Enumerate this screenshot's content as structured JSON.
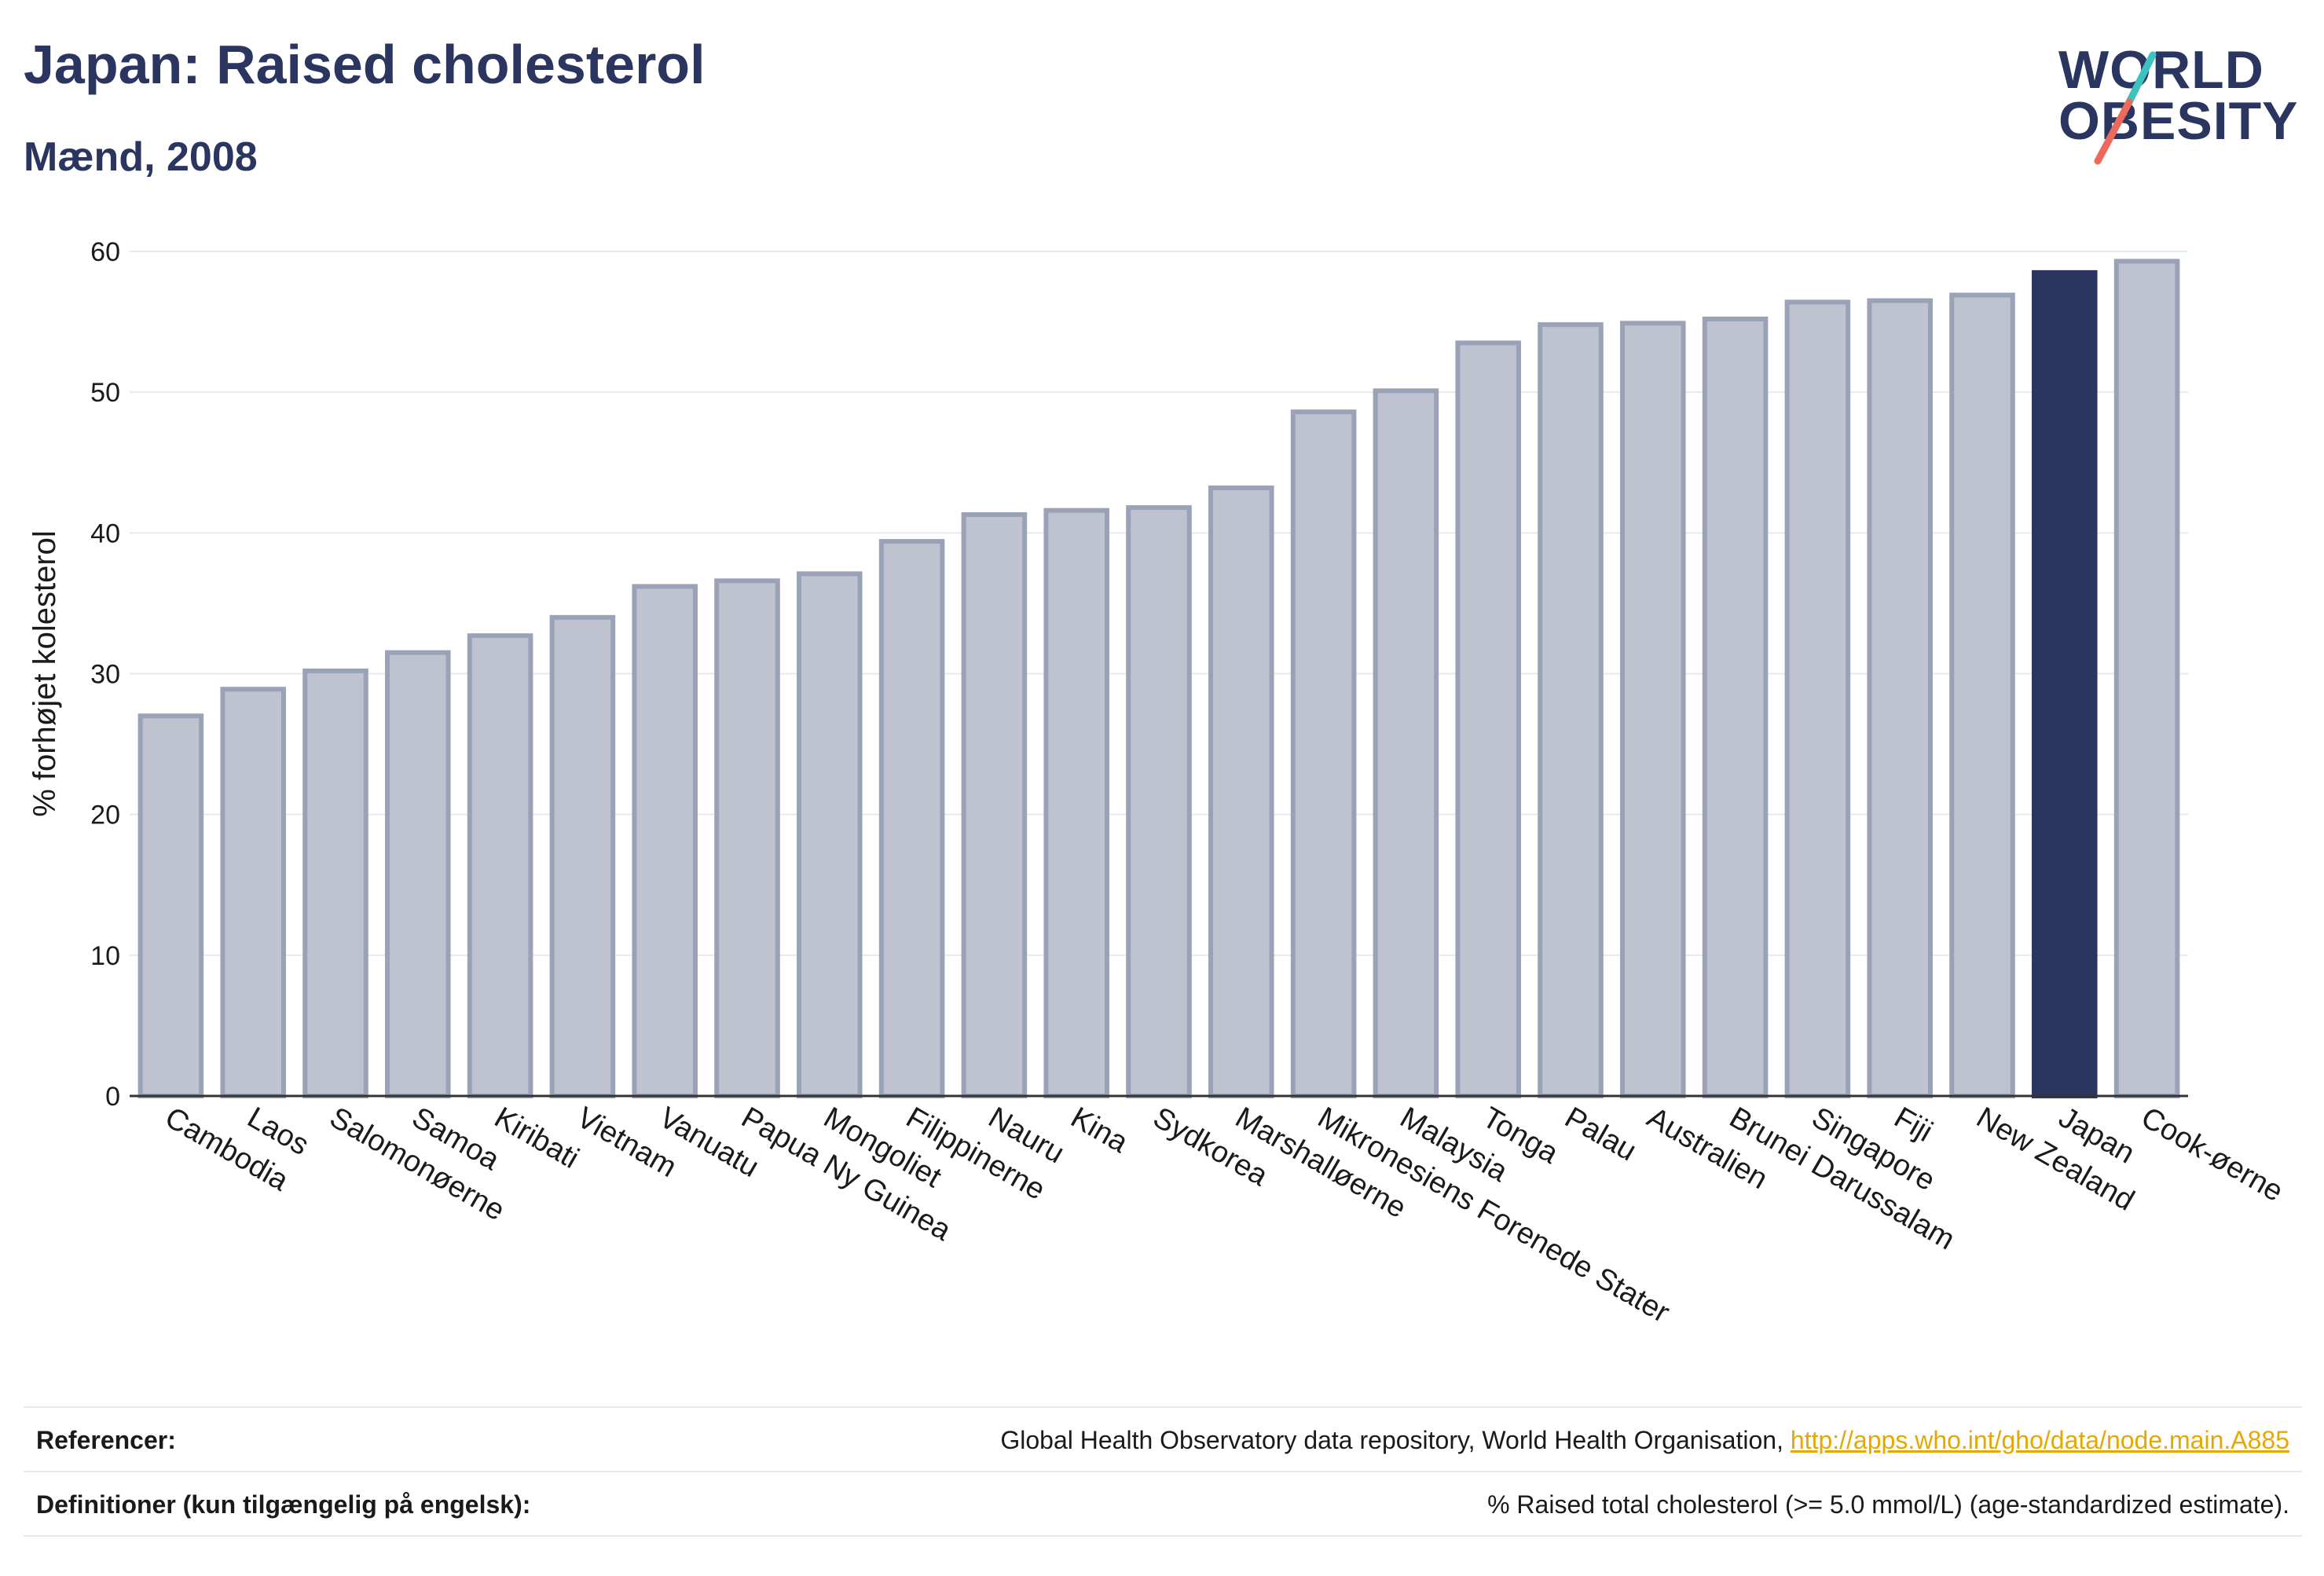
{
  "header": {
    "title": "Japan: Raised cholesterol",
    "subtitle": "Mænd, 2008"
  },
  "logo": {
    "line1": "WORLD",
    "line2": "OBESITY"
  },
  "colors": {
    "highlight": "#2a3560",
    "bar_fill": "#bfc3d0",
    "bar_stroke": "#9aa2b8",
    "grid": "#e8e9ee",
    "axis_text": "#1a1a1a"
  },
  "chart_data": {
    "type": "bar",
    "ylabel": "% forhøjet kolesterol",
    "ylim": [
      0,
      60
    ],
    "yticks": [
      0,
      10,
      20,
      30,
      40,
      50,
      60
    ],
    "grid": true,
    "highlight_category": "Japan",
    "categories": [
      "Cambodia",
      "Laos",
      "Salomonøerne",
      "Samoa",
      "Kiribati",
      "Vietnam",
      "Vanuatu",
      "Papua Ny Guinea",
      "Mongoliet",
      "Filippinerne",
      "Nauru",
      "Kina",
      "Sydkorea",
      "Marshalløerne",
      "Mikronesiens Forenede Stater",
      "Malaysia",
      "Tonga",
      "Palau",
      "Australien",
      "Brunei Darussalam",
      "Singapore",
      "Fiji",
      "New Zealand",
      "Japan",
      "Cook-øerne"
    ],
    "values": [
      27.0,
      28.9,
      30.2,
      31.5,
      32.7,
      34.0,
      36.2,
      36.6,
      37.1,
      39.4,
      41.3,
      41.6,
      41.8,
      43.2,
      48.6,
      50.1,
      53.5,
      54.8,
      54.9,
      55.2,
      56.4,
      56.5,
      56.9,
      58.5,
      59.3
    ]
  },
  "footer": {
    "references_label": "Referencer:",
    "references_text": "Global Health Observatory data repository, World Health Organisation,",
    "references_link": "http://apps.who.int/gho/data/node.main.A885",
    "definitions_label": "Definitioner (kun tilgængelig på engelsk):",
    "definitions_text": "% Raised total cholesterol (>= 5.0 mmol/L) (age-standardized estimate)."
  }
}
